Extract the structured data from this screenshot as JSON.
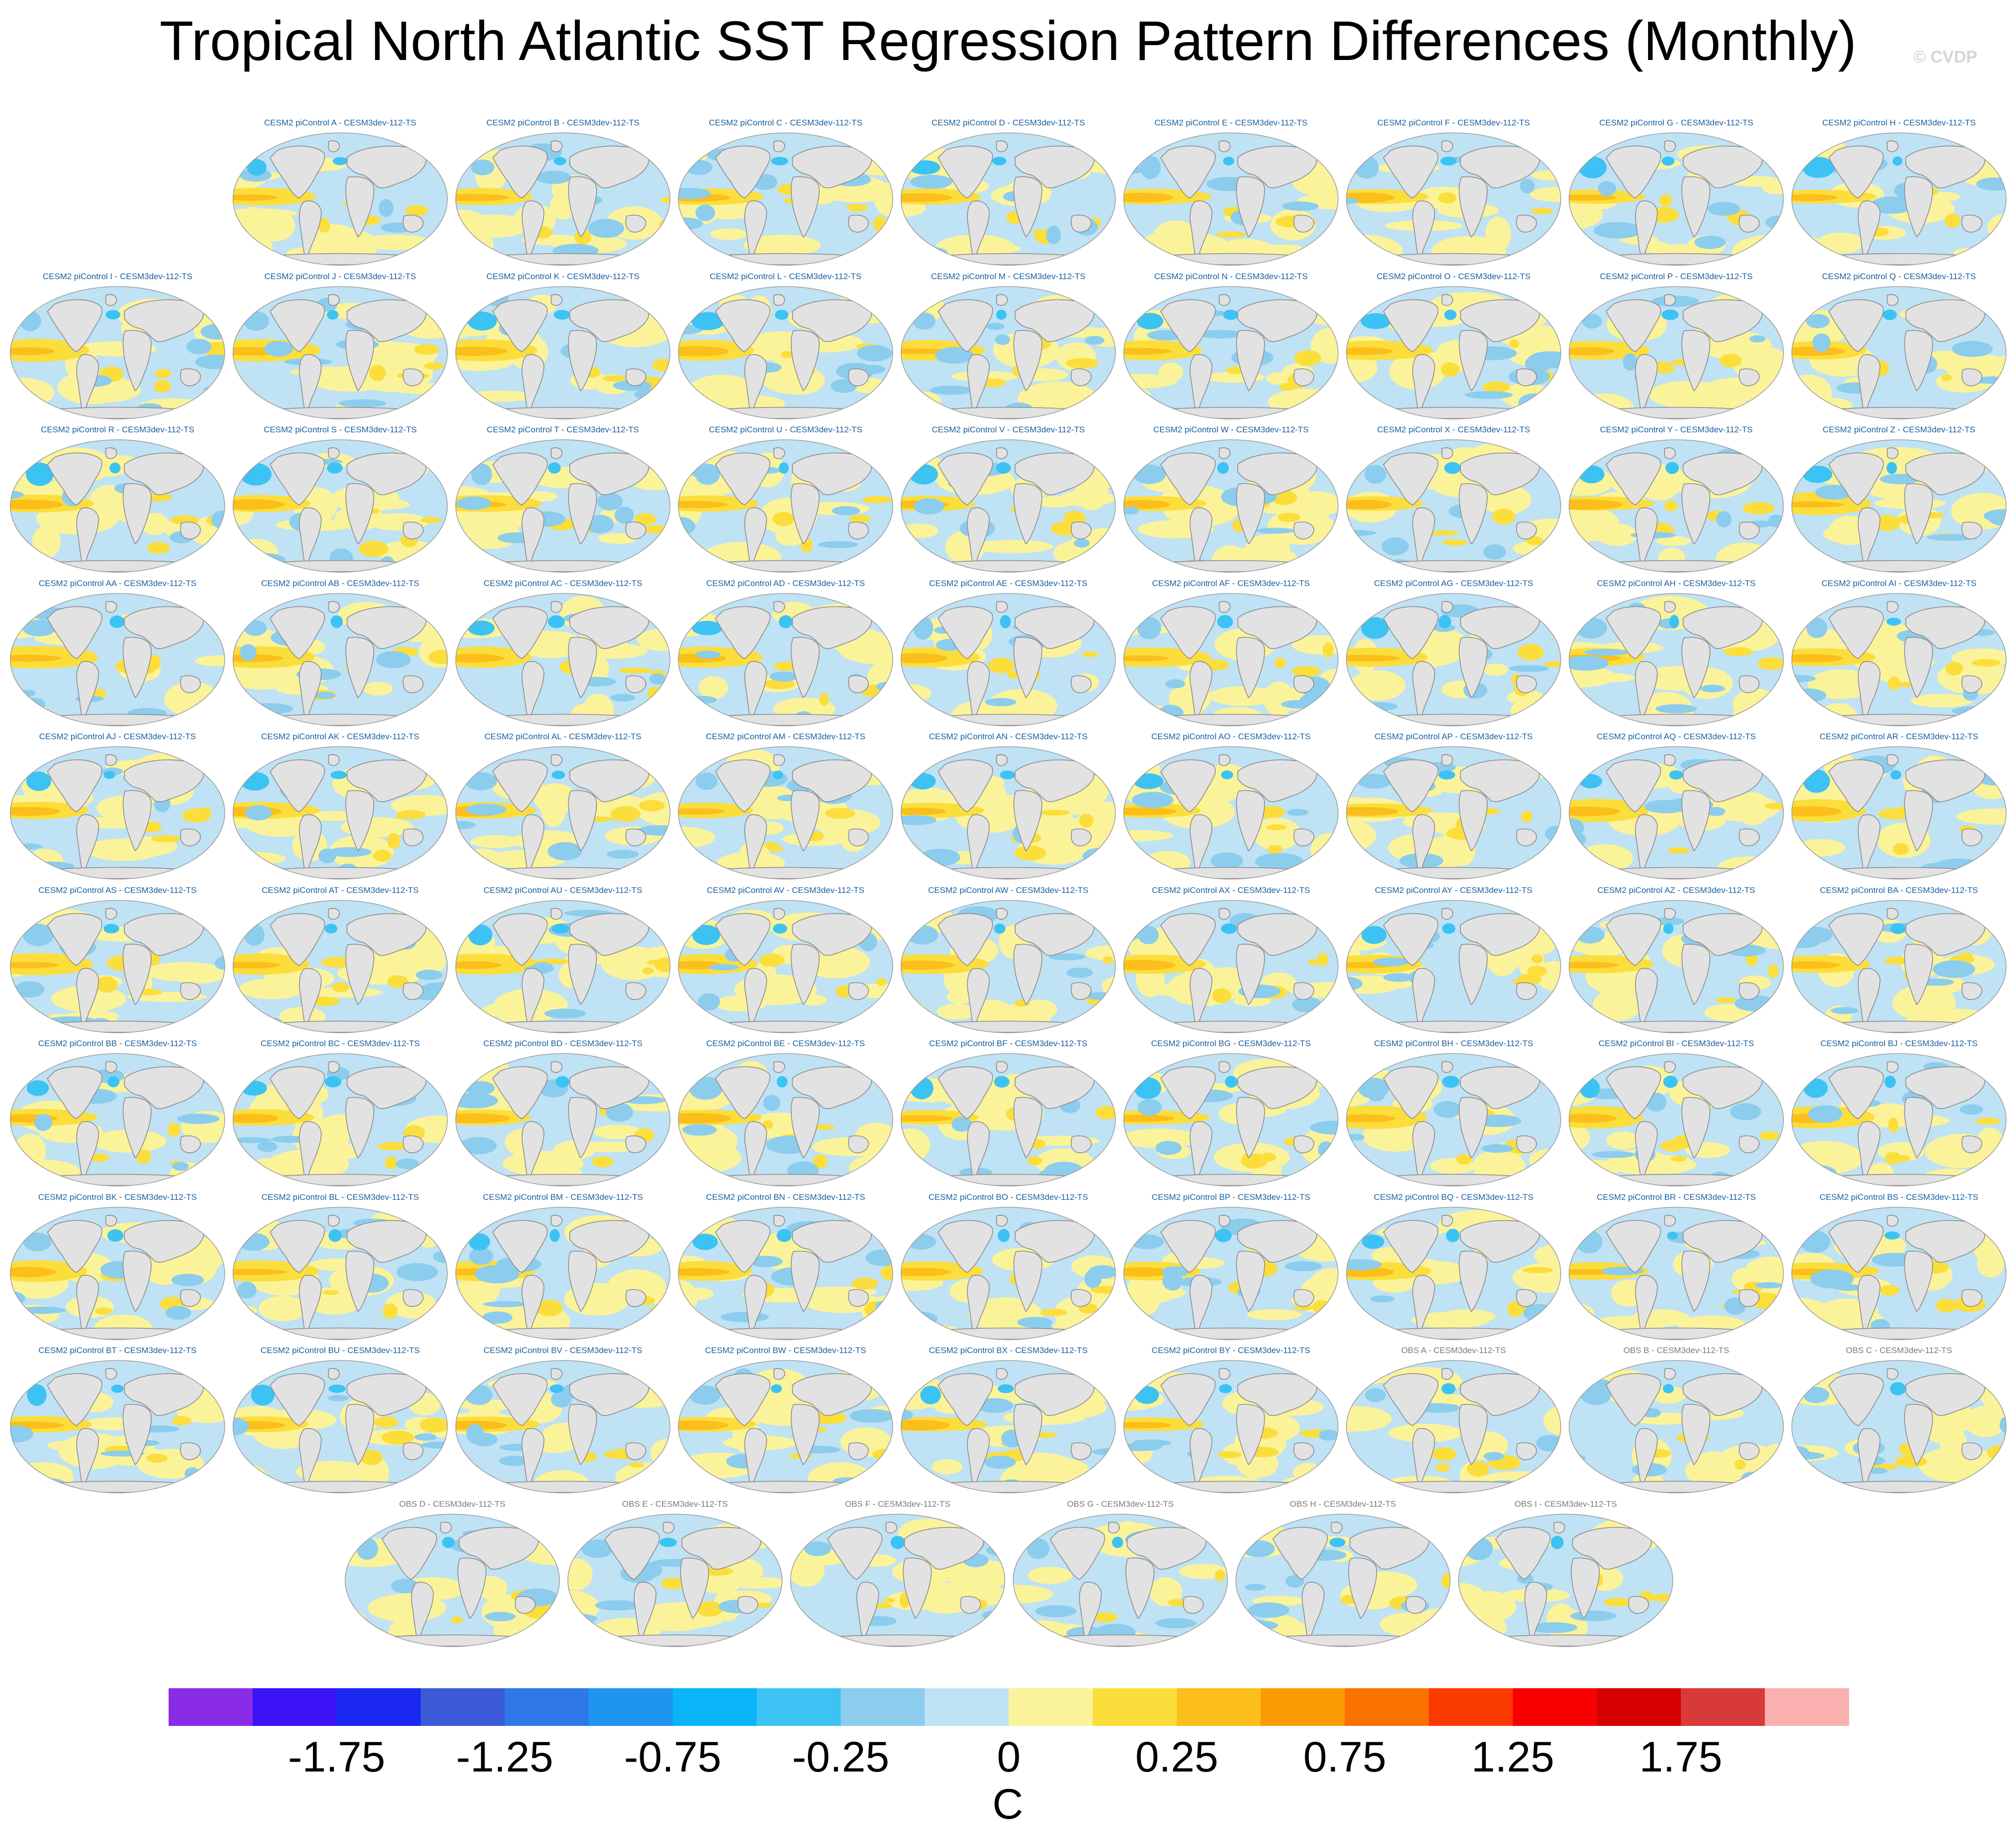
{
  "title": "Tropical North Atlantic SST Regression Pattern Differences (Monthly)",
  "watermark": "© CVDP",
  "colors": {
    "model_title": "#1a5f9e",
    "obs_title": "#7a7a7a",
    "land": "#e2e2e2",
    "coast": "#8a8a8a"
  },
  "rows": [
    [
      "CESM2 piControl A - CESM3dev-112-TS",
      "CESM2 piControl B - CESM3dev-112-TS",
      "CESM2 piControl C - CESM3dev-112-TS",
      "CESM2 piControl D - CESM3dev-112-TS",
      "CESM2 piControl E - CESM3dev-112-TS",
      "CESM2 piControl F - CESM3dev-112-TS",
      "CESM2 piControl G - CESM3dev-112-TS",
      "CESM2 piControl H - CESM3dev-112-TS"
    ],
    [
      "CESM2 piControl I - CESM3dev-112-TS",
      "CESM2 piControl J - CESM3dev-112-TS",
      "CESM2 piControl K - CESM3dev-112-TS",
      "CESM2 piControl L - CESM3dev-112-TS",
      "CESM2 piControl M - CESM3dev-112-TS",
      "CESM2 piControl N - CESM3dev-112-TS",
      "CESM2 piControl O - CESM3dev-112-TS",
      "CESM2 piControl P - CESM3dev-112-TS",
      "CESM2 piControl Q - CESM3dev-112-TS"
    ],
    [
      "CESM2 piControl R - CESM3dev-112-TS",
      "CESM2 piControl S - CESM3dev-112-TS",
      "CESM2 piControl T - CESM3dev-112-TS",
      "CESM2 piControl U - CESM3dev-112-TS",
      "CESM2 piControl V - CESM3dev-112-TS",
      "CESM2 piControl W - CESM3dev-112-TS",
      "CESM2 piControl X - CESM3dev-112-TS",
      "CESM2 piControl Y - CESM3dev-112-TS",
      "CESM2 piControl Z - CESM3dev-112-TS"
    ],
    [
      "CESM2 piControl AA - CESM3dev-112-TS",
      "CESM2 piControl AB - CESM3dev-112-TS",
      "CESM2 piControl AC - CESM3dev-112-TS",
      "CESM2 piControl AD - CESM3dev-112-TS",
      "CESM2 piControl AE - CESM3dev-112-TS",
      "CESM2 piControl AF - CESM3dev-112-TS",
      "CESM2 piControl AG - CESM3dev-112-TS",
      "CESM2 piControl AH - CESM3dev-112-TS",
      "CESM2 piControl AI - CESM3dev-112-TS"
    ],
    [
      "CESM2 piControl AJ - CESM3dev-112-TS",
      "CESM2 piControl AK - CESM3dev-112-TS",
      "CESM2 piControl AL - CESM3dev-112-TS",
      "CESM2 piControl AM - CESM3dev-112-TS",
      "CESM2 piControl AN - CESM3dev-112-TS",
      "CESM2 piControl AO - CESM3dev-112-TS",
      "CESM2 piControl AP - CESM3dev-112-TS",
      "CESM2 piControl AQ - CESM3dev-112-TS",
      "CESM2 piControl AR - CESM3dev-112-TS"
    ],
    [
      "CESM2 piControl AS - CESM3dev-112-TS",
      "CESM2 piControl AT - CESM3dev-112-TS",
      "CESM2 piControl AU - CESM3dev-112-TS",
      "CESM2 piControl AV - CESM3dev-112-TS",
      "CESM2 piControl AW - CESM3dev-112-TS",
      "CESM2 piControl AX - CESM3dev-112-TS",
      "CESM2 piControl AY - CESM3dev-112-TS",
      "CESM2 piControl AZ - CESM3dev-112-TS",
      "CESM2 piControl BA - CESM3dev-112-TS"
    ],
    [
      "CESM2 piControl BB - CESM3dev-112-TS",
      "CESM2 piControl BC - CESM3dev-112-TS",
      "CESM2 piControl BD - CESM3dev-112-TS",
      "CESM2 piControl BE - CESM3dev-112-TS",
      "CESM2 piControl BF - CESM3dev-112-TS",
      "CESM2 piControl BG - CESM3dev-112-TS",
      "CESM2 piControl BH - CESM3dev-112-TS",
      "CESM2 piControl BI - CESM3dev-112-TS",
      "CESM2 piControl BJ - CESM3dev-112-TS"
    ],
    [
      "CESM2 piControl BK - CESM3dev-112-TS",
      "CESM2 piControl BL - CESM3dev-112-TS",
      "CESM2 piControl BM - CESM3dev-112-TS",
      "CESM2 piControl BN - CESM3dev-112-TS",
      "CESM2 piControl BO - CESM3dev-112-TS",
      "CESM2 piControl BP - CESM3dev-112-TS",
      "CESM2 piControl BQ - CESM3dev-112-TS",
      "CESM2 piControl BR - CESM3dev-112-TS",
      "CESM2 piControl BS - CESM3dev-112-TS"
    ],
    [
      "CESM2 piControl BT - CESM3dev-112-TS",
      "CESM2 piControl BU - CESM3dev-112-TS",
      "CESM2 piControl BV - CESM3dev-112-TS",
      "CESM2 piControl BW - CESM3dev-112-TS",
      "CESM2 piControl BX - CESM3dev-112-TS",
      "CESM2 piControl BY - CESM3dev-112-TS",
      "OBS A - CESM3dev-112-TS",
      "OBS B - CESM3dev-112-TS",
      "OBS C - CESM3dev-112-TS"
    ],
    [
      "OBS D - CESM3dev-112-TS",
      "OBS E - CESM3dev-112-TS",
      "OBS F - CESM3dev-112-TS",
      "OBS G - CESM3dev-112-TS",
      "OBS H - CESM3dev-112-TS",
      "OBS I - CESM3dev-112-TS"
    ]
  ],
  "colorbar": {
    "units": "C",
    "colors": [
      "#8a2be8",
      "#3a12f5",
      "#1a28f0",
      "#3a5ad8",
      "#2e78e8",
      "#1e96f0",
      "#0ab4f8",
      "#3cc3f4",
      "#8ccdee",
      "#bfe2f4",
      "#fbf39a",
      "#fbde3c",
      "#fbbe1a",
      "#fb9a00",
      "#fb7200",
      "#fb3a00",
      "#f80000",
      "#d60000",
      "#d83a3a",
      "#fbb0b0"
    ],
    "tick_labels": [
      "-1.75",
      "-1.25",
      "-0.75",
      "-0.25",
      "0",
      "0.25",
      "0.75",
      "1.25",
      "1.75"
    ]
  }
}
